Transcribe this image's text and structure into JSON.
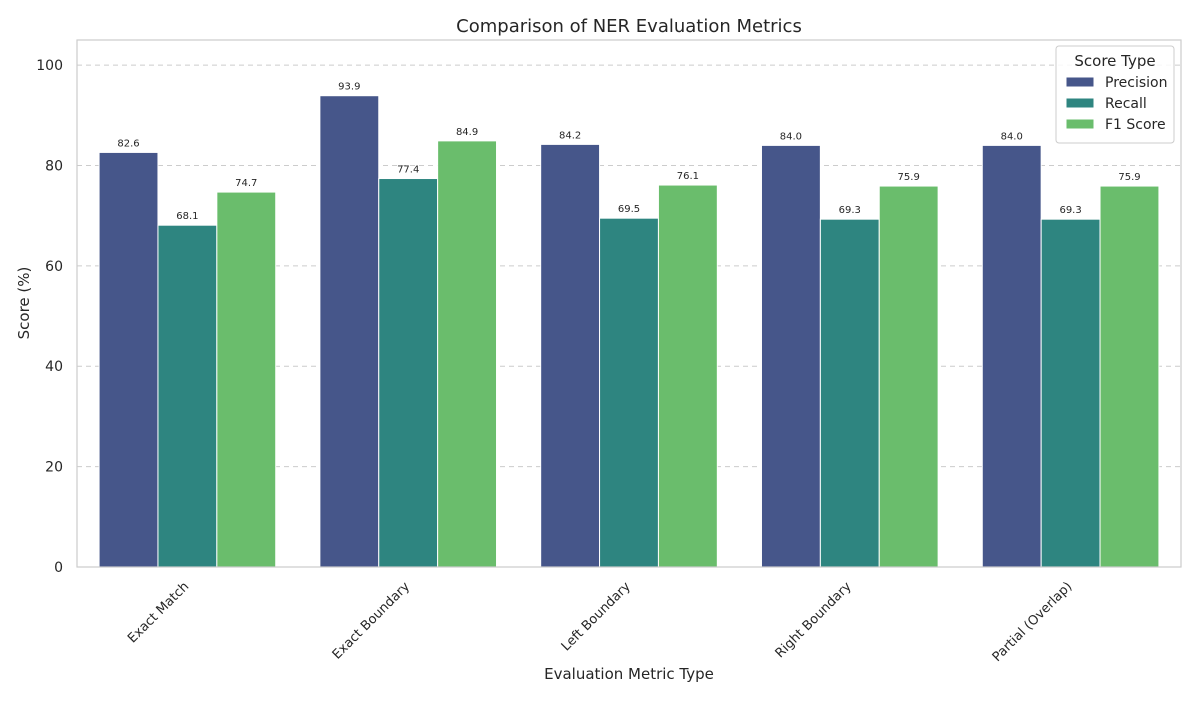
{
  "chart_data": {
    "type": "bar",
    "title": "Comparison of NER Evaluation Metrics",
    "xlabel": "Evaluation Metric Type",
    "ylabel": "Score (%)",
    "ylim": [
      0,
      105
    ],
    "yticks": [
      0,
      20,
      40,
      60,
      80,
      100
    ],
    "grid": "y-dashed",
    "categories": [
      "Exact Match",
      "Exact Boundary",
      "Left Boundary",
      "Right Boundary",
      "Partial (Overlap)"
    ],
    "legend": {
      "title": "Score Type",
      "placement": "top-right"
    },
    "series": [
      {
        "name": "Precision",
        "color": "#46568a",
        "values": [
          82.6,
          93.9,
          84.2,
          84.0,
          84.0
        ]
      },
      {
        "name": "Recall",
        "color": "#2e8580",
        "values": [
          68.1,
          77.4,
          69.5,
          69.3,
          69.3
        ]
      },
      {
        "name": "F1 Score",
        "color": "#6abd6c",
        "values": [
          74.7,
          84.9,
          76.1,
          75.9,
          75.9
        ]
      }
    ]
  }
}
